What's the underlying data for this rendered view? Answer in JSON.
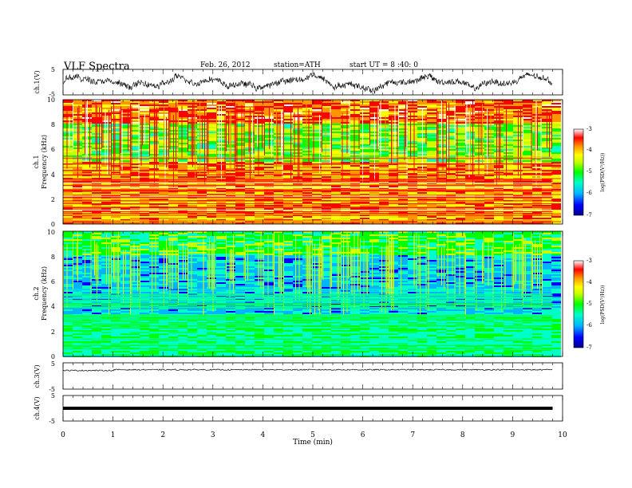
{
  "header": {
    "title": "VLF  Spectra",
    "date": "Feb. 26, 2012",
    "station": "station=ATH",
    "start_ut": "start  UT  =   8 :40: 0"
  },
  "chart_data": [
    {
      "type": "line",
      "ylabel": "ch.1(V)",
      "ylim": [
        -5,
        5
      ],
      "yticks": [
        "5",
        "-5"
      ],
      "xlim": [
        0,
        10
      ]
    },
    {
      "type": "heatmap",
      "ylabel": "ch.1\nFrequency (kHz)",
      "ylabel_lines": [
        "ch.1",
        "Frequency (kHz)"
      ],
      "ylim": [
        0,
        10
      ],
      "yticks": [
        "0",
        "2",
        "4",
        "6",
        "8",
        "10"
      ],
      "xlim": [
        0,
        10
      ],
      "colorbar": {
        "label": "log(PSD(V²/Hz))",
        "ticks": [
          "-3",
          "-4",
          "-5",
          "-6",
          "-7"
        ],
        "range": [
          -7,
          -3
        ]
      }
    },
    {
      "type": "heatmap",
      "ylabel": "ch.2\nFrequency (kHz)",
      "ylabel_lines": [
        "ch.2",
        "Frequency (kHz)"
      ],
      "ylim": [
        0,
        10
      ],
      "yticks": [
        "0",
        "2",
        "4",
        "6",
        "8",
        "10"
      ],
      "xlim": [
        0,
        10
      ],
      "colorbar": {
        "label": "log(PSD(V²/Hz))",
        "ticks": [
          "-3",
          "-4",
          "-5",
          "-6",
          "-7"
        ],
        "range": [
          -7,
          -3
        ]
      }
    },
    {
      "type": "line",
      "ylabel": "ch.3(V)",
      "ylim": [
        -5,
        5
      ],
      "yticks": [
        "5",
        "-5"
      ],
      "xlim": [
        0,
        10
      ]
    },
    {
      "type": "line",
      "ylabel": "ch.4(V)",
      "ylim": [
        -5,
        5
      ],
      "yticks": [
        "5",
        "-5"
      ],
      "xlim": [
        0,
        10
      ],
      "xlabel": "Time  (min)",
      "xticks": [
        "0",
        "1",
        "2",
        "3",
        "4",
        "5",
        "6",
        "7",
        "8",
        "9",
        "10"
      ]
    }
  ],
  "colors": {
    "trace": "#000000",
    "colormap": [
      "#00008c",
      "#0000ff",
      "#00b4ff",
      "#00ffc8",
      "#00ff00",
      "#c8ff00",
      "#ffff00",
      "#ff9600",
      "#ff0000",
      "#ffffff"
    ]
  }
}
